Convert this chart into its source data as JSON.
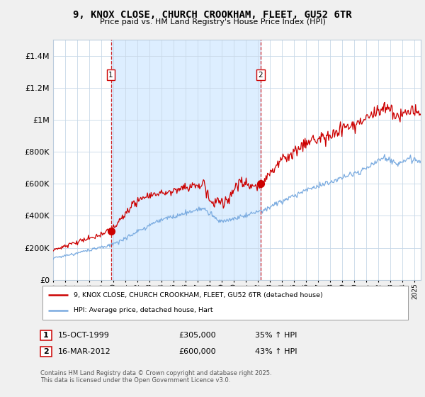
{
  "title": "9, KNOX CLOSE, CHURCH CROOKHAM, FLEET, GU52 6TR",
  "subtitle": "Price paid vs. HM Land Registry's House Price Index (HPI)",
  "legend_line1": "9, KNOX CLOSE, CHURCH CROOKHAM, FLEET, GU52 6TR (detached house)",
  "legend_line2": "HPI: Average price, detached house, Hart",
  "sale1_date": "15-OCT-1999",
  "sale1_price": "£305,000",
  "sale1_hpi": "35% ↑ HPI",
  "sale2_date": "16-MAR-2012",
  "sale2_price": "£600,000",
  "sale2_hpi": "43% ↑ HPI",
  "footer": "Contains HM Land Registry data © Crown copyright and database right 2025.\nThis data is licensed under the Open Government Licence v3.0.",
  "red_color": "#cc0000",
  "blue_color": "#7aabe0",
  "shade_color": "#ddeeff",
  "bg_color": "#f0f0f0",
  "plot_bg": "#ffffff",
  "ylim_min": 0,
  "ylim_max": 1500000,
  "sale1_year": 1999.79,
  "sale1_value": 305000,
  "sale2_year": 2012.21,
  "sale2_value": 600000,
  "xmin": 1995.0,
  "xmax": 2025.5
}
